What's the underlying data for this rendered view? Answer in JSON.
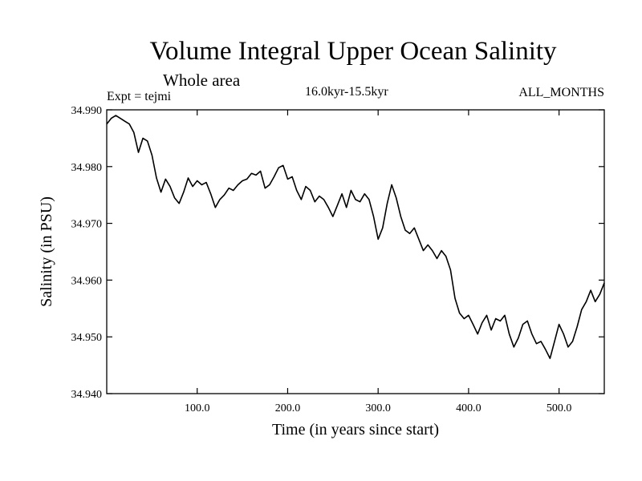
{
  "chart_data": {
    "type": "line",
    "title": "Volume Integral Upper Ocean Salinity",
    "subtitle": "Whole area",
    "experiment": "Expt = tejmi",
    "period": "16.0kyr-15.5kyr",
    "months": "ALL_MONTHS",
    "xlabel": "Time (in years since start)",
    "ylabel": "Salinity (in PSU)",
    "xlim": [
      0,
      550
    ],
    "ylim": [
      34.94,
      34.99
    ],
    "x_ticks": [
      100,
      200,
      300,
      400,
      500
    ],
    "x_tick_labels": [
      "100.0",
      "200.0",
      "300.0",
      "400.0",
      "500.0"
    ],
    "y_ticks": [
      34.94,
      34.95,
      34.96,
      34.97,
      34.98,
      34.99
    ],
    "y_tick_labels": [
      "34.940",
      "34.950",
      "34.960",
      "34.970",
      "34.980",
      "34.990"
    ],
    "series": [
      {
        "name": "salinity",
        "x": [
          0,
          5,
          10,
          15,
          20,
          25,
          30,
          35,
          40,
          45,
          50,
          55,
          60,
          65,
          70,
          75,
          80,
          85,
          90,
          95,
          100,
          105,
          110,
          115,
          120,
          125,
          130,
          135,
          140,
          145,
          150,
          155,
          160,
          165,
          170,
          175,
          180,
          185,
          190,
          195,
          200,
          205,
          210,
          215,
          220,
          225,
          230,
          235,
          240,
          245,
          250,
          255,
          260,
          265,
          270,
          275,
          280,
          285,
          290,
          295,
          300,
          305,
          310,
          315,
          320,
          325,
          330,
          335,
          340,
          345,
          350,
          355,
          360,
          365,
          370,
          375,
          380,
          385,
          390,
          395,
          400,
          405,
          410,
          415,
          420,
          425,
          430,
          435,
          440,
          445,
          450,
          455,
          460,
          465,
          470,
          475,
          480,
          485,
          490,
          495,
          500,
          505,
          510,
          515,
          520,
          525,
          530,
          535,
          540,
          545,
          550
        ],
        "values": [
          34.9875,
          34.9885,
          34.989,
          34.9885,
          34.988,
          34.9875,
          34.986,
          34.9825,
          34.985,
          34.9845,
          34.982,
          34.978,
          34.9755,
          34.9778,
          34.9765,
          34.9745,
          34.9735,
          34.9755,
          34.978,
          34.9765,
          34.9775,
          34.9768,
          34.9772,
          34.9752,
          34.9728,
          34.9742,
          34.975,
          34.9762,
          34.9758,
          34.9768,
          34.9775,
          34.9778,
          34.9788,
          34.9785,
          34.9792,
          34.9762,
          34.9768,
          34.9782,
          34.9798,
          34.9802,
          34.9778,
          34.9782,
          34.9758,
          34.9742,
          34.9765,
          34.9758,
          34.9738,
          34.9748,
          34.9742,
          34.9728,
          34.9712,
          34.9732,
          34.9752,
          34.9728,
          34.9758,
          34.9742,
          34.9738,
          34.9752,
          34.9742,
          34.9712,
          34.9672,
          34.9692,
          34.9735,
          34.9768,
          34.9745,
          34.9712,
          34.9688,
          34.9682,
          34.9692,
          34.9672,
          34.9652,
          34.9662,
          34.9652,
          34.9638,
          34.9652,
          34.9642,
          34.9618,
          34.9568,
          34.9542,
          34.9532,
          34.9538,
          34.9522,
          34.9505,
          34.9525,
          34.9538,
          34.9512,
          34.9532,
          34.9528,
          34.9538,
          34.9505,
          34.9482,
          34.9498,
          34.9522,
          34.9528,
          34.9505,
          34.9488,
          34.9492,
          34.9478,
          34.9462,
          34.9492,
          34.9522,
          34.9505,
          34.9482,
          34.9492,
          34.9518,
          34.9548,
          34.9562,
          34.9582,
          34.9562,
          34.9575,
          34.9595
        ]
      }
    ]
  }
}
